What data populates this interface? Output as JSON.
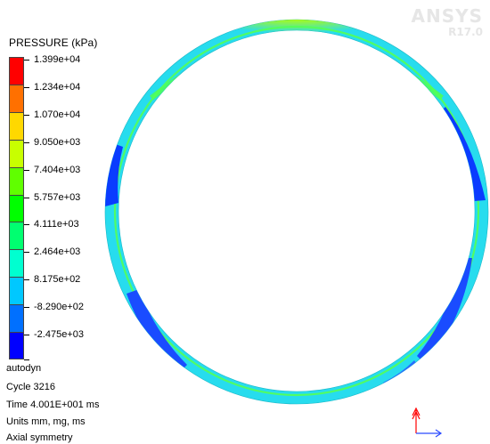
{
  "watermark": {
    "brand": "ANSYS",
    "version": "R17.0"
  },
  "legend": {
    "title": "PRESSURE (kPa)",
    "levels": [
      {
        "label": "1.399e+04",
        "color": "#ff0000"
      },
      {
        "label": "1.234e+04",
        "color": "#ff7000"
      },
      {
        "label": "1.070e+04",
        "color": "#ffd800"
      },
      {
        "label": "9.050e+03",
        "color": "#c8ff00"
      },
      {
        "label": "7.404e+03",
        "color": "#60ff00"
      },
      {
        "label": "5.757e+03",
        "color": "#00ff00"
      },
      {
        "label": "4.111e+03",
        "color": "#00ff70"
      },
      {
        "label": "2.464e+03",
        "color": "#00ffd0"
      },
      {
        "label": "8.175e+02",
        "color": "#00c8ff"
      },
      {
        "label": "-8.290e+02",
        "color": "#0070ff"
      },
      {
        "label": "-2.475e+03",
        "color": "#0000ff"
      }
    ]
  },
  "info": {
    "solver": "autodyn",
    "cycle": "Cycle 3216",
    "time": "Time 4.001E+001 ms",
    "units": "Units mm, mg, ms",
    "symmetry": "Axial symmetry"
  },
  "colors": {
    "ring_base": "#27dcee",
    "ring_inner_line": "#55ff55",
    "high_pressure_top": "#ff5a00",
    "low_pressure": "#0a3cff",
    "axis_arrow": "#ff0000",
    "axis_arrow_x": "#2b4bff"
  }
}
